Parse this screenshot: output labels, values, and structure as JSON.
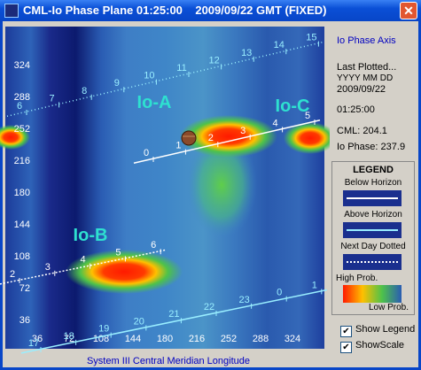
{
  "window": {
    "title": "CML-Io Phase Plane 01:25:00    2009/09/22 GMT (FIXED)"
  },
  "plot": {
    "yticks": [
      36,
      72,
      108,
      144,
      180,
      216,
      252,
      288,
      324
    ],
    "xticks": [
      36,
      72,
      108,
      144,
      180,
      216,
      252,
      288,
      324
    ],
    "x_axis_label": "System III Central Meridian Longitude",
    "regions": [
      "Io-A",
      "Io-B",
      "Io-C"
    ],
    "tracks": [
      [
        6,
        7,
        8,
        9,
        10,
        11,
        12,
        13,
        14,
        15
      ],
      [
        0,
        1,
        2,
        3,
        4,
        5
      ],
      [
        2,
        3,
        4,
        5,
        6
      ],
      [
        17,
        18,
        19,
        20,
        21,
        22,
        23,
        0,
        1
      ]
    ]
  },
  "panel": {
    "axis_title": "Io Phase Axis",
    "last_plotted": "Last Plotted...",
    "date_format": "YYYY MM DD",
    "date": "2009/09/22",
    "time": "01:25:00",
    "cml": "CML: 204.1",
    "io_phase": "Io Phase: 237.9",
    "legend": {
      "title": "LEGEND",
      "below": "Below Horizon",
      "above": "Above Horizon",
      "next_day": "Next Day Dotted",
      "high": "High Prob.",
      "low": "Low Prob."
    },
    "checkboxes": [
      "Show Legend",
      "ShowScale"
    ]
  }
}
